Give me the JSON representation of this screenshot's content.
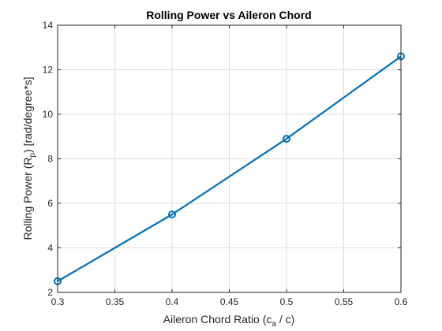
{
  "chart_data": {
    "type": "line",
    "title": "Rolling Power vs Aileron Chord",
    "xlabel": {
      "prefix": "Aileron Chord Ratio (c",
      "sub": "a",
      "suffix": " / c)"
    },
    "ylabel": {
      "prefix": "Rolling Power (R",
      "sub": "p",
      "suffix": ") [rad/degree*s]"
    },
    "xlim": [
      0.3,
      0.6
    ],
    "ylim": [
      2,
      14
    ],
    "xticks": [
      0.3,
      0.35,
      0.4,
      0.45,
      0.5,
      0.55,
      0.6
    ],
    "xtick_labels": [
      "0.3",
      "0.35",
      "0.4",
      "0.45",
      "0.5",
      "0.55",
      "0.6"
    ],
    "yticks": [
      2,
      4,
      6,
      8,
      10,
      12,
      14
    ],
    "ytick_labels": [
      "2",
      "4",
      "6",
      "8",
      "10",
      "12",
      "14"
    ],
    "grid": true,
    "series": [
      {
        "x": [
          0.3,
          0.4,
          0.5,
          0.6
        ],
        "y": [
          2.5,
          5.5,
          8.9,
          12.6
        ],
        "color": "#0072BD",
        "marker": "circle"
      }
    ]
  }
}
